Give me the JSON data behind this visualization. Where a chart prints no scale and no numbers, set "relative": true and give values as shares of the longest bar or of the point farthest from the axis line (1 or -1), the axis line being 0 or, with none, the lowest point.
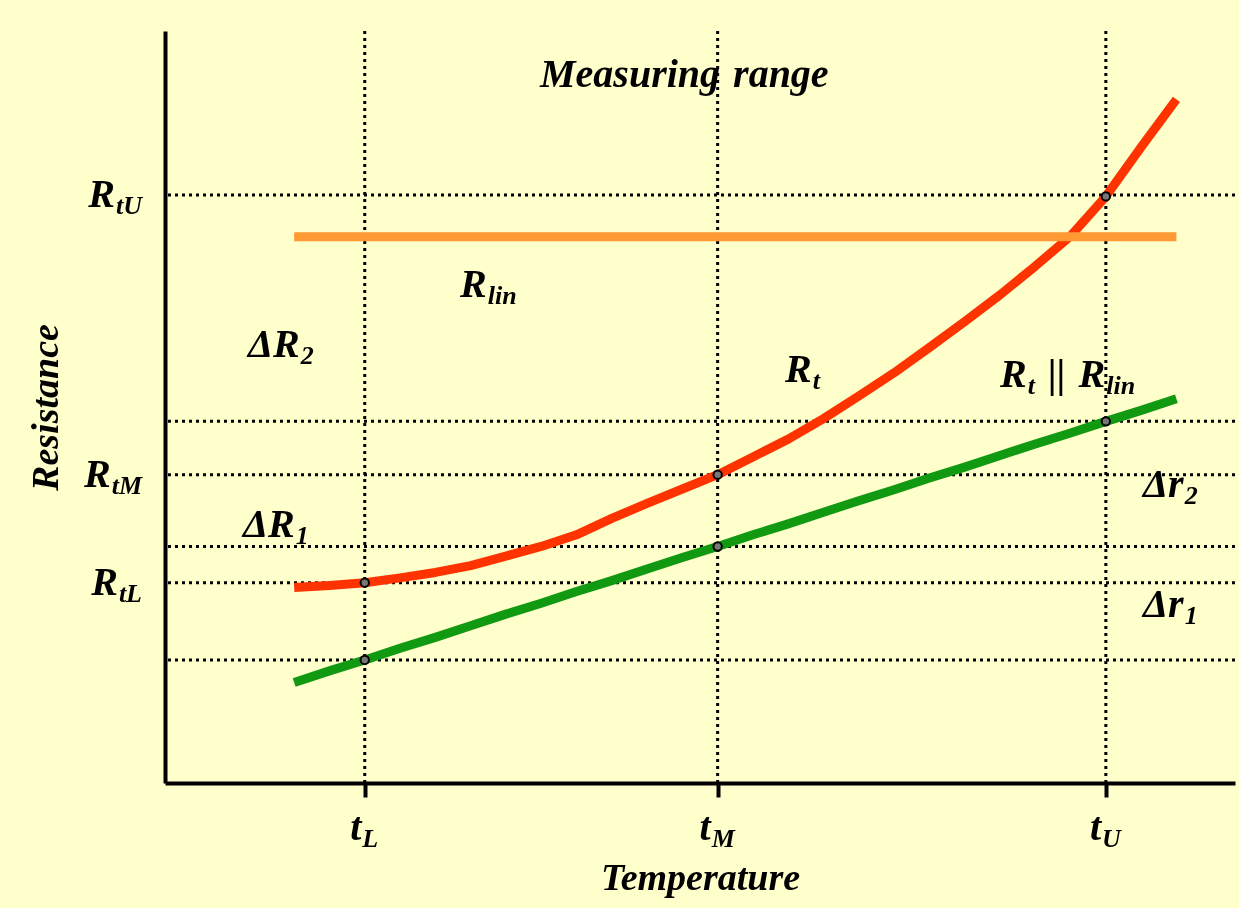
{
  "chart_data": {
    "type": "line",
    "relative": true,
    "xlabel": "Temperature",
    "ylabel": "Resistance",
    "categories": [
      null,
      null,
      null,
      null,
      null,
      "t$_{L}$",
      null,
      null,
      null,
      null,
      null,
      null,
      null,
      null,
      null,
      "t$_{M}$",
      null,
      null,
      null,
      null,
      null,
      null,
      null,
      null,
      null,
      null,
      "t$_{U}$",
      null,
      null,
      null
    ],
    "series": [
      {
        "color": "#ff3300",
        "values": [
          null,
          null,
          null,
          0.286,
          0.289,
          0.293,
          0.3,
          0.308,
          0.318,
          0.332,
          0.346,
          0.363,
          0.387,
          0.409,
          0.43,
          0.451,
          0.477,
          0.503,
          0.533,
          0.566,
          0.6,
          0.637,
          0.675,
          0.714,
          0.756,
          0.8,
          0.858,
          0.93,
          1,
          null
        ]
      },
      {
        "color": "#119911",
        "values": [
          null,
          null,
          null,
          0.147,
          0.164,
          0.18,
          0.197,
          0.213,
          0.23,
          0.247,
          0.263,
          0.28,
          0.296,
          0.313,
          0.33,
          0.346,
          0.363,
          0.379,
          0.396,
          0.413,
          0.429,
          0.446,
          0.462,
          0.479,
          0.496,
          0.512,
          0.529,
          0.545,
          0.562,
          null
        ]
      },
      {
        "color": "#ff9933",
        "values": [
          null,
          null,
          null,
          0.799,
          0.799,
          0.799,
          0.799,
          0.799,
          0.799,
          0.799,
          0.799,
          0.799,
          0.799,
          0.799,
          0.799,
          0.799,
          0.799,
          0.799,
          0.799,
          0.799,
          0.799,
          0.799,
          0.799,
          0.799,
          0.799,
          0.799,
          0.799,
          0.799,
          0.799,
          null
        ]
      },
      {
        "type": "scatter",
        "color": "#777777",
        "values": [
          null,
          null,
          null,
          null,
          null,
          0.293,
          null,
          null,
          null,
          null,
          null,
          null,
          null,
          null,
          null,
          0.451,
          null,
          null,
          null,
          null,
          null,
          null,
          null,
          null,
          null,
          null,
          0.858,
          null,
          null,
          null
        ]
      },
      {
        "type": "scatter",
        "color": "#777777",
        "values": [
          null,
          null,
          null,
          null,
          null,
          0.18,
          null,
          null,
          null,
          null,
          null,
          null,
          null,
          null,
          null,
          0.346,
          null,
          null,
          null,
          null,
          null,
          null,
          null,
          null,
          null,
          null,
          0.529,
          null,
          null,
          null
        ]
      }
    ],
    "ref_lines": [
      {
        "axis": "y",
        "value": 0.86,
        "label": "R$_{tU}$"
      },
      {
        "axis": "y",
        "value": 0.451,
        "label": "R$_{tM}$"
      },
      {
        "axis": "y",
        "value": 0.293,
        "label": "R$_{tL}$"
      },
      {
        "axis": "y",
        "value": 0.529
      },
      {
        "axis": "y",
        "value": 0.346
      },
      {
        "axis": "y",
        "value": 0.18
      },
      {
        "axis": "x",
        "value": "t$_{L}$"
      },
      {
        "axis": "x",
        "value": "t$_{M}$"
      },
      {
        "axis": "x",
        "value": "t$_{U}$"
      }
    ],
    "annotations": [
      "Measuring range",
      "R$_{lin}$",
      "R$_{t}$",
      "R$_{t}$ || R$_{lin}$",
      "ΔR$_{2}$",
      "ΔR$_{1}$",
      "Δr$_{2}$",
      "Δr$_{1}$"
    ]
  }
}
